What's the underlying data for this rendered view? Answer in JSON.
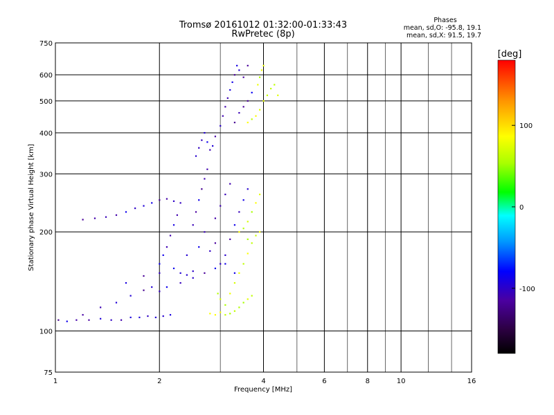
{
  "chart_data": {
    "type": "scatter",
    "title": "Tromsø 20161012 01:32:00-01:33:43",
    "subtitle": "RwPretec (8p)",
    "xlabel": "Frequency [MHz]",
    "ylabel": "Stationary phase Virtual Height [km]",
    "x_scale": "log",
    "y_scale": "log",
    "xlim": [
      1,
      16
    ],
    "ylim": [
      75,
      750
    ],
    "x_ticks": [
      1,
      2,
      4,
      6,
      8,
      10,
      16
    ],
    "x_minor_ticks": [
      3,
      5,
      7,
      9,
      12,
      14
    ],
    "y_ticks": [
      75,
      100,
      200,
      300,
      400,
      500,
      600,
      750
    ],
    "grid": true,
    "phases_box": {
      "heading": "Phases",
      "line_o": "mean, sd,O: -95.8, 19.1",
      "line_x": "mean, sd,X:  91.5, 19.7"
    },
    "colorbar": {
      "label": "[deg]",
      "range": [
        -180,
        180
      ],
      "ticks": [
        100,
        0,
        -100
      ],
      "colors": [
        "#000000",
        "#2b0040",
        "#4b00a0",
        "#0000ff",
        "#0096ff",
        "#00ffff",
        "#00ff00",
        "#aaff00",
        "#ffff00",
        "#ff9600",
        "#ff0000"
      ]
    },
    "series": [
      {
        "description": "O-mode",
        "phase_deg": -95.8,
        "points": [
          [
            1.02,
            108
          ],
          [
            1.08,
            107
          ],
          [
            1.15,
            108
          ],
          [
            1.25,
            108
          ],
          [
            1.35,
            109
          ],
          [
            1.45,
            108
          ],
          [
            1.55,
            108
          ],
          [
            1.65,
            110
          ],
          [
            1.75,
            110
          ],
          [
            1.85,
            111
          ],
          [
            1.95,
            110
          ],
          [
            2.05,
            111
          ],
          [
            2.15,
            112
          ],
          [
            1.2,
            112
          ],
          [
            1.35,
            118
          ],
          [
            1.5,
            122
          ],
          [
            1.65,
            128
          ],
          [
            1.8,
            133
          ],
          [
            1.9,
            136
          ],
          [
            2.0,
            132
          ],
          [
            2.1,
            136
          ],
          [
            1.6,
            140
          ],
          [
            1.8,
            147
          ],
          [
            2.0,
            150
          ],
          [
            2.2,
            155
          ],
          [
            2.3,
            150
          ],
          [
            2.4,
            148
          ],
          [
            2.5,
            152
          ],
          [
            2.0,
            160
          ],
          [
            2.05,
            170
          ],
          [
            2.1,
            180
          ],
          [
            2.15,
            195
          ],
          [
            2.2,
            210
          ],
          [
            2.25,
            225
          ],
          [
            1.2,
            218
          ],
          [
            1.3,
            220
          ],
          [
            1.4,
            222
          ],
          [
            1.5,
            225
          ],
          [
            1.6,
            230
          ],
          [
            1.7,
            236
          ],
          [
            1.8,
            240
          ],
          [
            1.9,
            245
          ],
          [
            2.0,
            250
          ],
          [
            2.1,
            252
          ],
          [
            2.2,
            248
          ],
          [
            2.3,
            245
          ],
          [
            2.5,
            210
          ],
          [
            2.55,
            230
          ],
          [
            2.6,
            250
          ],
          [
            2.65,
            270
          ],
          [
            2.7,
            290
          ],
          [
            2.75,
            310
          ],
          [
            2.4,
            170
          ],
          [
            2.6,
            180
          ],
          [
            2.8,
            175
          ],
          [
            2.9,
            185
          ],
          [
            2.7,
            200
          ],
          [
            2.9,
            220
          ],
          [
            3.0,
            240
          ],
          [
            3.1,
            260
          ],
          [
            3.2,
            280
          ],
          [
            3.0,
            160
          ],
          [
            3.1,
            170
          ],
          [
            3.2,
            190
          ],
          [
            3.3,
            210
          ],
          [
            3.4,
            230
          ],
          [
            3.5,
            250
          ],
          [
            3.6,
            270
          ],
          [
            2.55,
            340
          ],
          [
            2.6,
            360
          ],
          [
            2.65,
            380
          ],
          [
            2.7,
            400
          ],
          [
            2.75,
            375
          ],
          [
            2.8,
            355
          ],
          [
            2.85,
            365
          ],
          [
            2.9,
            390
          ],
          [
            3.0,
            420
          ],
          [
            3.05,
            450
          ],
          [
            3.1,
            480
          ],
          [
            3.15,
            510
          ],
          [
            3.2,
            540
          ],
          [
            3.25,
            570
          ],
          [
            3.3,
            600
          ],
          [
            3.35,
            640
          ],
          [
            3.3,
            430
          ],
          [
            3.4,
            460
          ],
          [
            3.5,
            480
          ],
          [
            3.6,
            500
          ],
          [
            3.7,
            530
          ],
          [
            3.5,
            590
          ],
          [
            3.4,
            620
          ],
          [
            3.6,
            640
          ],
          [
            2.3,
            140
          ],
          [
            2.5,
            145
          ],
          [
            2.7,
            150
          ],
          [
            2.9,
            155
          ],
          [
            3.1,
            160
          ],
          [
            3.3,
            150
          ]
        ]
      },
      {
        "description": "X-mode",
        "phase_deg": 91.5,
        "points": [
          [
            2.8,
            113
          ],
          [
            2.9,
            112
          ],
          [
            3.0,
            114
          ],
          [
            3.1,
            112
          ],
          [
            3.2,
            113
          ],
          [
            3.3,
            115
          ],
          [
            3.4,
            118
          ],
          [
            3.5,
            122
          ],
          [
            3.6,
            125
          ],
          [
            3.7,
            128
          ],
          [
            3.2,
            130
          ],
          [
            3.3,
            140
          ],
          [
            3.4,
            150
          ],
          [
            3.5,
            160
          ],
          [
            3.6,
            172
          ],
          [
            3.7,
            185
          ],
          [
            3.8,
            195
          ],
          [
            3.9,
            200
          ],
          [
            3.5,
            205
          ],
          [
            3.6,
            215
          ],
          [
            3.7,
            230
          ],
          [
            3.8,
            245
          ],
          [
            3.9,
            260
          ],
          [
            3.4,
            200
          ],
          [
            3.6,
            190
          ],
          [
            3.6,
            430
          ],
          [
            3.7,
            440
          ],
          [
            3.8,
            450
          ],
          [
            3.9,
            470
          ],
          [
            4.0,
            500
          ],
          [
            4.1,
            520
          ],
          [
            4.2,
            545
          ],
          [
            4.3,
            560
          ],
          [
            4.4,
            520
          ],
          [
            3.9,
            590
          ],
          [
            3.95,
            620
          ],
          [
            4.0,
            640
          ],
          [
            3.85,
            560
          ],
          [
            3.0,
            125
          ],
          [
            3.1,
            120
          ],
          [
            2.95,
            130
          ]
        ]
      }
    ]
  }
}
